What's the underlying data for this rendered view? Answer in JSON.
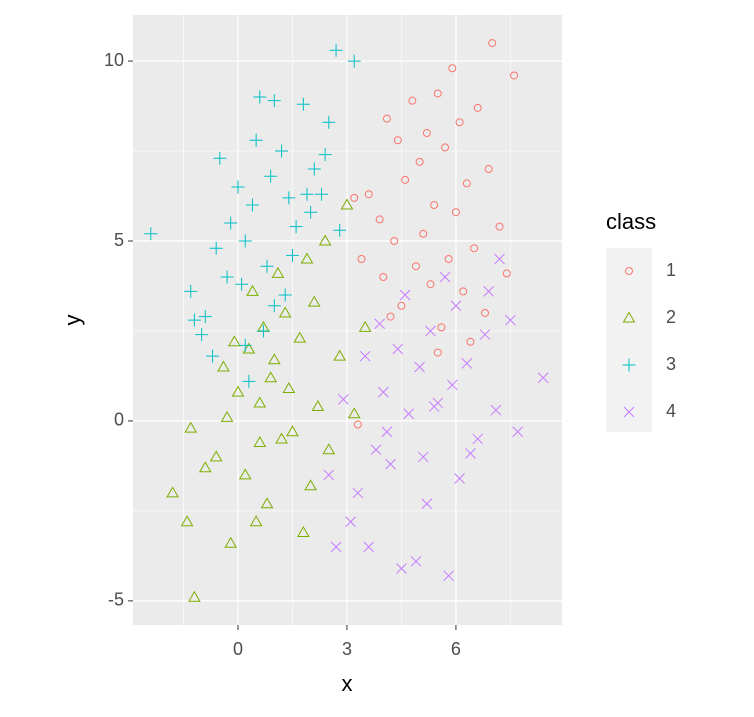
{
  "chart_data": {
    "type": "scatter",
    "x_label": "x",
    "y_label": "y",
    "legend_title": "class",
    "legend": "right",
    "grid": true,
    "xlim": [
      -2.89,
      8.92
    ],
    "ylim": [
      -5.67,
      11.28
    ],
    "xticks": [
      0,
      3,
      6
    ],
    "yticks": [
      -5,
      0,
      5,
      10
    ],
    "xminor": [
      -1.5,
      1.5,
      4.5,
      7.5
    ],
    "yminor": [
      -2.5,
      2.5,
      7.5
    ],
    "series": [
      {
        "name": "1",
        "color": "#F8766D",
        "shape": "circle",
        "x": [
          7.0,
          5.9,
          5.5,
          7.6,
          6.6,
          4.8,
          5.2,
          6.1,
          4.1,
          5.7,
          6.9,
          4.4,
          5.0,
          6.3,
          3.6,
          4.6,
          5.4,
          6.0,
          7.2,
          3.9,
          4.3,
          5.1,
          6.5,
          5.8,
          4.9,
          3.4,
          4.0,
          5.3,
          6.2,
          7.4,
          4.5,
          3.2,
          3.3,
          5.6,
          6.8,
          4.2,
          5.5,
          6.4
        ],
        "values": [
          10.5,
          9.8,
          9.1,
          9.6,
          8.7,
          8.9,
          8.0,
          8.3,
          8.4,
          7.6,
          7.0,
          7.8,
          7.2,
          6.6,
          6.3,
          6.7,
          6.0,
          5.8,
          5.4,
          5.6,
          5.0,
          5.2,
          4.8,
          4.5,
          4.3,
          4.5,
          4.0,
          3.8,
          3.6,
          4.1,
          3.2,
          6.2,
          -0.1,
          2.6,
          3.0,
          2.9,
          1.9,
          2.2
        ]
      },
      {
        "name": "2",
        "color": "#7CAE00",
        "shape": "triangle",
        "x": [
          -1.2,
          -1.8,
          -1.4,
          -0.9,
          -0.2,
          0.5,
          0.8,
          1.8,
          -0.6,
          0.2,
          1.2,
          2.0,
          -1.3,
          -0.3,
          0.6,
          1.5,
          2.5,
          0.0,
          0.9,
          1.4,
          2.2,
          3.2,
          -0.4,
          0.3,
          1.0,
          1.7,
          2.8,
          0.7,
          1.3,
          2.1,
          3.5,
          1.9,
          2.4,
          3.0,
          0.4,
          1.1,
          -0.1,
          0.6
        ],
        "values": [
          -4.9,
          -2.0,
          -2.8,
          -1.3,
          -3.4,
          -2.8,
          -2.3,
          -3.1,
          -1.0,
          -1.5,
          -0.5,
          -1.8,
          -0.2,
          0.1,
          0.5,
          -0.3,
          -0.8,
          0.8,
          1.2,
          0.9,
          0.4,
          0.2,
          1.5,
          2.0,
          1.7,
          2.3,
          1.8,
          2.6,
          3.0,
          3.3,
          2.6,
          4.5,
          5.0,
          6.0,
          3.6,
          4.1,
          2.2,
          -0.6
        ]
      },
      {
        "name": "3",
        "color": "#00BFC4",
        "shape": "plus",
        "x": [
          -2.4,
          -1.3,
          -1.0,
          -0.7,
          -0.3,
          0.2,
          0.8,
          1.0,
          1.5,
          2.0,
          2.3,
          2.7,
          3.2,
          -0.5,
          0.0,
          0.5,
          1.2,
          1.8,
          2.5,
          -0.9,
          -0.2,
          0.4,
          0.9,
          1.4,
          2.1,
          2.8,
          -1.2,
          -0.6,
          0.1,
          0.7,
          1.3,
          1.9,
          0.3,
          1.0,
          0.6,
          0.2,
          1.6,
          2.4
        ],
        "values": [
          5.2,
          3.6,
          2.4,
          1.8,
          4.0,
          5.0,
          4.3,
          3.2,
          4.6,
          5.8,
          6.3,
          10.3,
          10.0,
          7.3,
          6.5,
          7.8,
          7.5,
          8.8,
          8.3,
          2.9,
          5.5,
          6.0,
          6.8,
          6.2,
          7.0,
          5.3,
          2.8,
          4.8,
          3.8,
          2.5,
          3.5,
          6.3,
          1.1,
          8.9,
          9.0,
          2.1,
          5.4,
          7.4
        ]
      },
      {
        "name": "4",
        "color": "#C77CFF",
        "shape": "cross",
        "x": [
          8.4,
          7.7,
          7.5,
          6.9,
          5.8,
          4.5,
          4.9,
          2.7,
          3.1,
          3.6,
          2.5,
          3.3,
          4.2,
          5.2,
          6.1,
          6.6,
          7.1,
          4.0,
          4.7,
          5.5,
          3.8,
          5.0,
          5.9,
          6.4,
          4.4,
          5.3,
          6.0,
          4.6,
          3.5,
          5.7,
          6.8,
          7.2,
          4.1,
          5.4,
          6.3,
          2.9,
          3.9,
          5.1
        ],
        "values": [
          1.2,
          -0.3,
          2.8,
          3.6,
          -4.3,
          -4.1,
          -3.9,
          -3.5,
          -2.8,
          -3.5,
          -1.5,
          -2.0,
          -1.2,
          -2.3,
          -1.6,
          -0.5,
          0.3,
          0.8,
          0.2,
          0.5,
          -0.8,
          1.5,
          1.0,
          -0.9,
          2.0,
          2.5,
          3.2,
          3.5,
          1.8,
          4.0,
          2.4,
          4.5,
          -0.3,
          0.4,
          1.6,
          0.6,
          2.7,
          -1.0
        ]
      }
    ]
  }
}
